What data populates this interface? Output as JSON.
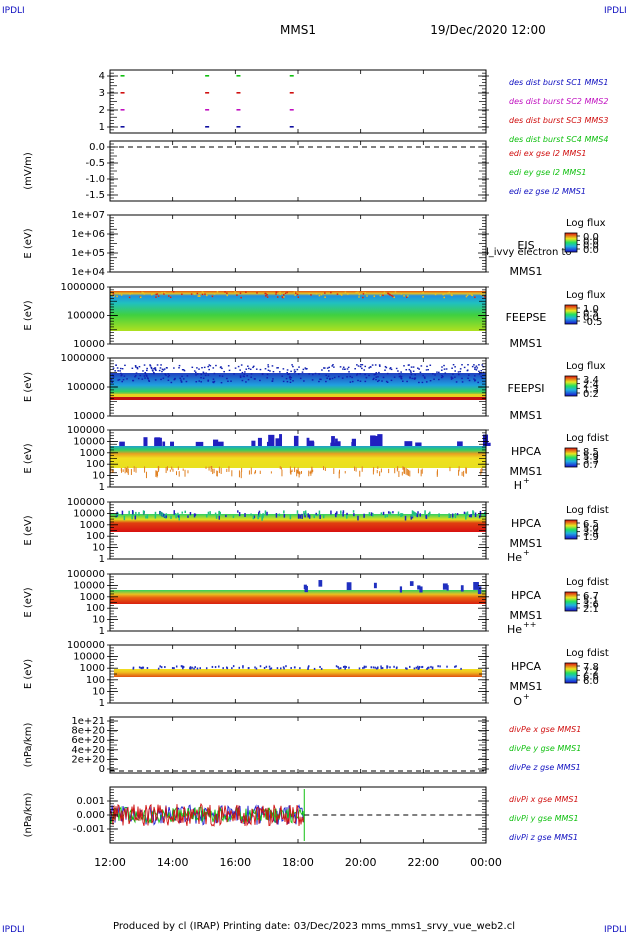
{
  "corner_label": "IPDLI",
  "header": {
    "title": "MMS1",
    "datetime": "19/Dec/2020 12:00"
  },
  "footer": {
    "text": "Produced by cl (IRAP)   Printing date: 03/Dec/2023   mms_mms1_srvy_vue_web2.cl"
  },
  "colors": {
    "red": "#d01010",
    "green": "#10c010",
    "blue": "#1010c0",
    "magenta": "#c010c0",
    "dark_blue": "#1010a0"
  },
  "chart_data": {
    "type": "heatmap",
    "time_axis": {
      "labels": [
        "12:00",
        "14:00",
        "16:00",
        "18:00",
        "20:00",
        "22:00",
        "00:00"
      ],
      "range_hours": [
        12,
        24
      ]
    },
    "panels": [
      {
        "id": "burst",
        "ylabel": "",
        "yticks": [
          "4",
          "3",
          "2",
          "1"
        ],
        "legend": [
          {
            "text": "des dist burst SC1 MMS1",
            "color": "#1010c0"
          },
          {
            "text": "des dist burst SC2 MMS2",
            "color": "#c010c0"
          },
          {
            "text": "des dist burst SC3 MMS3",
            "color": "#d01010"
          },
          {
            "text": "des dist burst SC4 MMS4",
            "color": "#10c010"
          }
        ],
        "burst_times_hours": [
          12.4,
          15.1,
          16.1,
          17.8
        ]
      },
      {
        "id": "edi",
        "ylabel": "(mV/m)",
        "yticks": [
          "0.0",
          "-0.5",
          "-1.0",
          "-1.5"
        ],
        "legend": [
          {
            "text": "edi ex gse l2 MMS1",
            "color": "#d01010"
          },
          {
            "text": "edi ey gse l2 MMS1",
            "color": "#10c010"
          },
          {
            "text": "edi ez gse l2 MMS1",
            "color": "#1010c0"
          }
        ]
      },
      {
        "id": "eis",
        "ylabel": "E (eV)",
        "yticks": [
          "1e+07",
          "1e+06",
          "1e+05",
          "1e+04"
        ],
        "instrument": "EIS",
        "spacecraft": "MMS1",
        "overlay_text": "l_ivvy electron to",
        "colorbar": {
          "title": "Log flux",
          "ticks": [
            "0.0",
            "0.0",
            "0.0",
            "0.0"
          ]
        }
      },
      {
        "id": "feepse",
        "ylabel": "E (eV)",
        "yticks": [
          "1000000",
          "100000",
          "10000"
        ],
        "instrument": "FEEPSE",
        "spacecraft": "MMS1",
        "colorbar": {
          "title": "Log flux",
          "ticks": [
            "1.0",
            "0.5",
            "0.0",
            "-0.5"
          ]
        }
      },
      {
        "id": "feepsi",
        "ylabel": "E (eV)",
        "yticks": [
          "1000000",
          "100000",
          "10000"
        ],
        "instrument": "FEEPSI",
        "spacecraft": "MMS1",
        "colorbar": {
          "title": "Log flux",
          "ticks": [
            "3.4",
            "2.4",
            "1.3",
            "0.2"
          ]
        }
      },
      {
        "id": "hpca_h",
        "ylabel": "E (eV)",
        "yticks": [
          "100000",
          "10000",
          "1000",
          "100",
          "10",
          "1"
        ],
        "instrument": "HPCA",
        "spacecraft": "MMS1",
        "species": "H",
        "species_sup": "+",
        "colorbar": {
          "title": "Log fdist",
          "ticks": [
            "8.5",
            "5.9",
            "3.3",
            "0.7"
          ]
        }
      },
      {
        "id": "hpca_he",
        "ylabel": "E (eV)",
        "yticks": [
          "100000",
          "10000",
          "1000",
          "100",
          "10",
          "1"
        ],
        "instrument": "HPCA",
        "spacecraft": "MMS1",
        "species": "He",
        "species_sup": "+",
        "colorbar": {
          "title": "Log fdist",
          "ticks": [
            "6.5",
            "5.0",
            "3.4",
            "1.9"
          ]
        }
      },
      {
        "id": "hpca_hepp",
        "ylabel": "E (eV)",
        "yticks": [
          "100000",
          "10000",
          "1000",
          "100",
          "10",
          "1"
        ],
        "instrument": "HPCA",
        "spacecraft": "MMS1",
        "species": "He",
        "species_sup": "++",
        "colorbar": {
          "title": "Log fdist",
          "ticks": [
            "6.7",
            "5.1",
            "3.6",
            "2.1"
          ]
        }
      },
      {
        "id": "hpca_o",
        "ylabel": "E (eV)",
        "yticks": [
          "100000",
          "10000",
          "1000",
          "100",
          "10",
          "1"
        ],
        "instrument": "HPCA",
        "spacecraft": "MMS1",
        "species": "O",
        "species_sup": "+",
        "colorbar": {
          "title": "Log fdist",
          "ticks": [
            "7.8",
            "7.2",
            "6.6",
            "6.0"
          ]
        }
      },
      {
        "id": "divpe",
        "ylabel": "(nPa/km)",
        "yticks": [
          "1e+21",
          "8e+20",
          "6e+20",
          "4e+20",
          "2e+20",
          "0"
        ],
        "legend": [
          {
            "text": "divPe x gse MMS1",
            "color": "#d01010"
          },
          {
            "text": "divPe y gse MMS1",
            "color": "#10c010"
          },
          {
            "text": "divPe z gse MMS1",
            "color": "#1010c0"
          }
        ]
      },
      {
        "id": "divpi",
        "ylabel": "(nPa/km)",
        "yticks": [
          "0.001",
          "0.000",
          "-0.001"
        ],
        "legend": [
          {
            "text": "divPi x gse MMS1",
            "color": "#d01010"
          },
          {
            "text": "divPi y gse MMS1",
            "color": "#10c010"
          },
          {
            "text": "divPi z gse MMS1",
            "color": "#1010c0"
          }
        ],
        "data_end_hours": 18.2,
        "amplitude_range": [
          -0.001,
          0.001
        ]
      }
    ]
  }
}
